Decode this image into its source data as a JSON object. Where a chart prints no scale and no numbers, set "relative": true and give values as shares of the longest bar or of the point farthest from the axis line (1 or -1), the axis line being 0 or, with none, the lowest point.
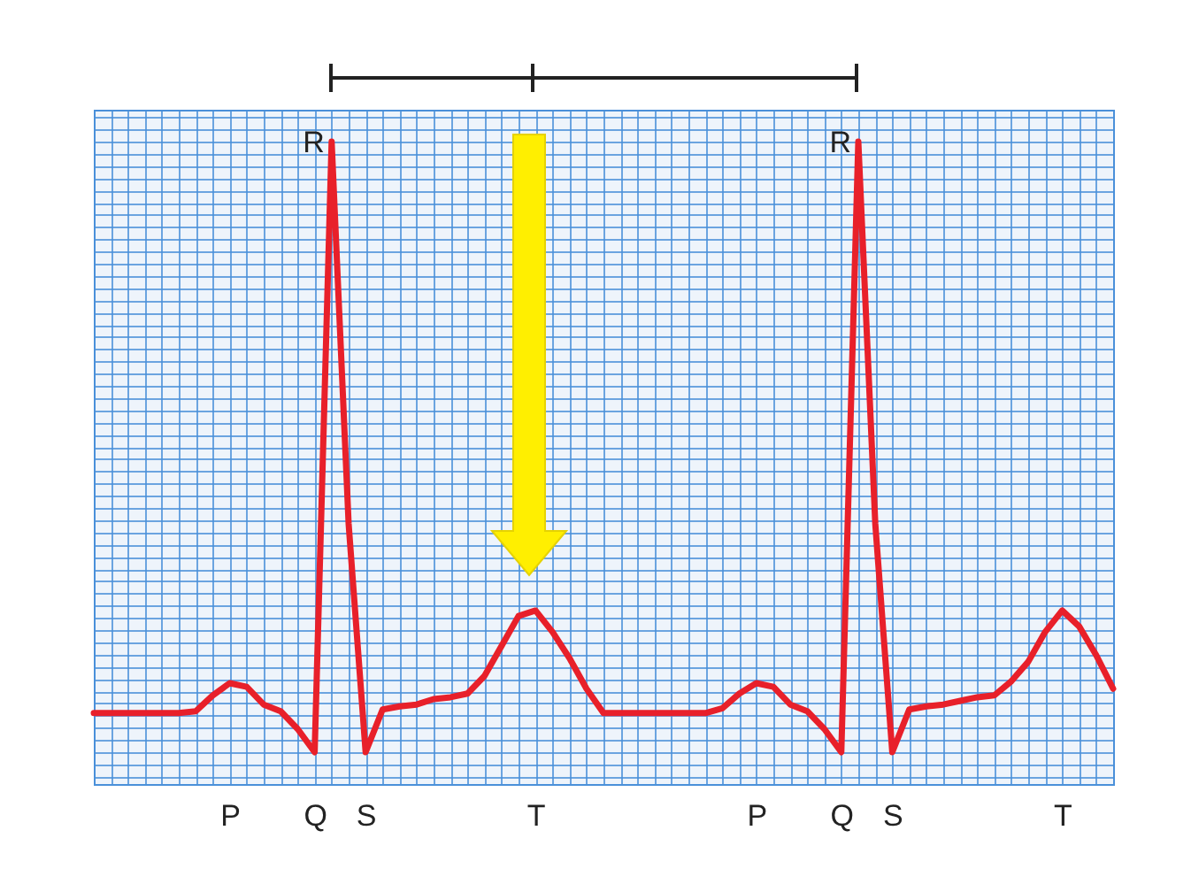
{
  "chart_data": {
    "type": "line",
    "relative": true,
    "grid": true,
    "color": "#e8202a",
    "categories": [
      null,
      null,
      null,
      null,
      null,
      null,
      null,
      null,
      "P",
      null,
      null,
      null,
      null,
      "Q",
      null,
      null,
      "S",
      null,
      null,
      null,
      null,
      null,
      null,
      null,
      null,
      null,
      "T",
      null,
      null,
      null,
      null,
      null,
      null,
      null,
      null,
      null,
      null,
      null,
      null,
      "P",
      null,
      null,
      null,
      null,
      "Q",
      null,
      null,
      "S",
      null,
      null,
      null,
      null,
      null,
      null,
      null,
      null,
      null,
      "T",
      null,
      null,
      null
    ],
    "values": [
      0.064,
      0.064,
      0.064,
      0.064,
      0.064,
      0.064,
      0.067,
      0.093,
      0.113,
      0.107,
      0.078,
      0.067,
      0.038,
      0,
      1,
      0.374,
      0,
      0.07,
      0.075,
      0.078,
      0.087,
      0.09,
      0.096,
      0.125,
      0.174,
      0.223,
      0.232,
      0.197,
      0.154,
      0.104,
      0.064,
      0.064,
      0.064,
      0.064,
      0.064,
      0.064,
      0.064,
      0.072,
      0.096,
      0.113,
      0.107,
      0.078,
      0.067,
      0.038,
      0,
      1,
      0.374,
      0,
      0.07,
      0.075,
      0.078,
      0.084,
      0.09,
      0.093,
      0.116,
      0.148,
      0.197,
      0.232,
      0.206,
      0.159,
      0.104
    ],
    "annotations": [
      "R",
      "R"
    ]
  }
}
